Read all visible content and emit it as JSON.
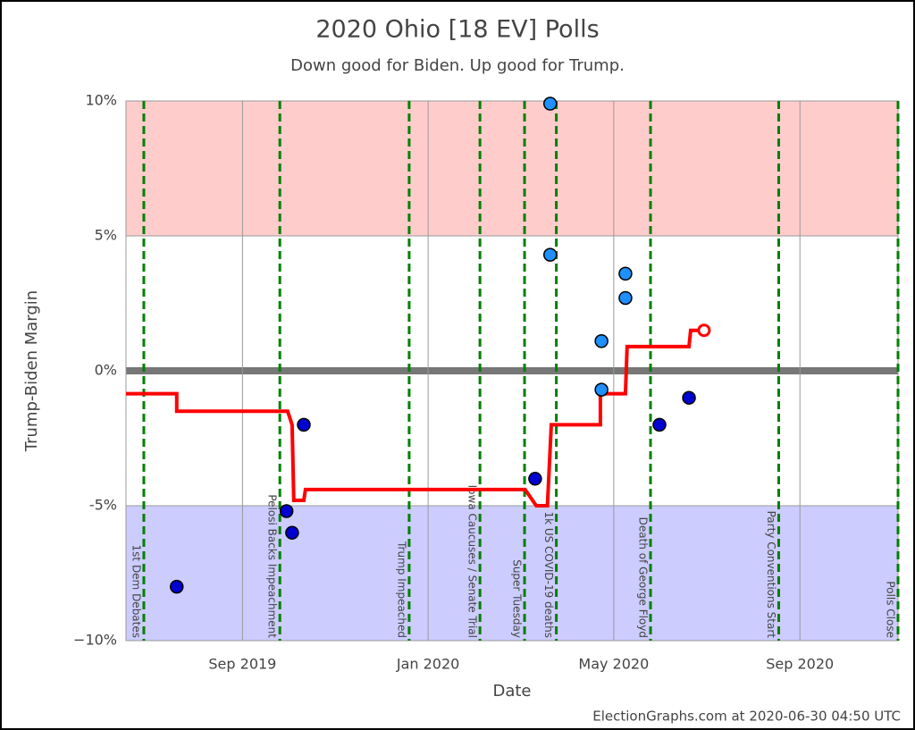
{
  "chart_data": {
    "type": "scatter",
    "title": "2020 Ohio [18 EV] Polls",
    "subtitle": "Down good for Biden. Up good for Trump.",
    "x_label": "Date",
    "y_label": "Trump-Biden Margin",
    "footer": "ElectionGraphs.com at 2020-06-30 04:50 UTC",
    "xlim": [
      2019.458,
      2020.843
    ],
    "xticks": [
      {
        "value": 2019.667,
        "label": "Sep 2019"
      },
      {
        "value": 2020.0,
        "label": "Jan 2020"
      },
      {
        "value": 2020.333,
        "label": "May 2020"
      },
      {
        "value": 2020.667,
        "label": "Sep 2020"
      }
    ],
    "ylim": [
      -10,
      10
    ],
    "yticks": [
      {
        "value": 10,
        "label": "10%"
      },
      {
        "value": 5,
        "label": "5%"
      },
      {
        "value": 0,
        "label": "0%"
      },
      {
        "value": -5,
        "label": "-5%"
      },
      {
        "value": -10,
        "label": "−10%"
      }
    ],
    "bands": [
      {
        "from": 5,
        "to": 10,
        "color": "#ffcccc"
      },
      {
        "from": -10,
        "to": -5,
        "color": "#ccccff"
      }
    ],
    "grid": true,
    "events": [
      {
        "x": 2019.49,
        "label": "1st Dem Debates"
      },
      {
        "x": 2019.734,
        "label": "Pelosi Backs Impeachment"
      },
      {
        "x": 2019.966,
        "label": "Trump Impeached"
      },
      {
        "x": 2020.093,
        "label": "Iowa Caucuses / Senate Trial"
      },
      {
        "x": 2020.173,
        "label": "Super Tuesday"
      },
      {
        "x": 2020.23,
        "label": "1k US COVID-19 deaths"
      },
      {
        "x": 2020.399,
        "label": "Death of George Floyd"
      },
      {
        "x": 2020.629,
        "label": "Party Conventions Start"
      },
      {
        "x": 2020.843,
        "label": "Polls Close"
      }
    ],
    "series": [
      {
        "color": "#0000d0",
        "x": [
          2019.549,
          2019.746,
          2019.756,
          2019.777,
          2020.192,
          2020.415,
          2020.468
        ],
        "values": [
          -8,
          -5.2,
          -6,
          -2,
          -4,
          -2,
          -1
        ]
      },
      {
        "color": "#1e90ff",
        "x": [
          2020.219,
          2020.219,
          2020.311,
          2020.311,
          2020.354,
          2020.354
        ],
        "values": [
          9.9,
          4.3,
          1.1,
          -0.7,
          3.6,
          2.7
        ]
      }
    ],
    "average": {
      "color": "#ff0000",
      "x": [
        2019.458,
        2019.549,
        2019.549,
        2019.748,
        2019.756,
        2019.759,
        2019.777,
        2019.78,
        2020.174,
        2020.194,
        2020.214,
        2020.221,
        2020.309,
        2020.309,
        2020.354,
        2020.357,
        2020.468,
        2020.471,
        2020.495
      ],
      "values": [
        -0.85,
        -0.85,
        -1.5,
        -1.5,
        -2,
        -4.8,
        -4.8,
        -4.4,
        -4.4,
        -5,
        -5,
        -2,
        -2,
        -0.85,
        -0.85,
        0.9,
        0.9,
        1.5,
        1.5
      ]
    }
  }
}
